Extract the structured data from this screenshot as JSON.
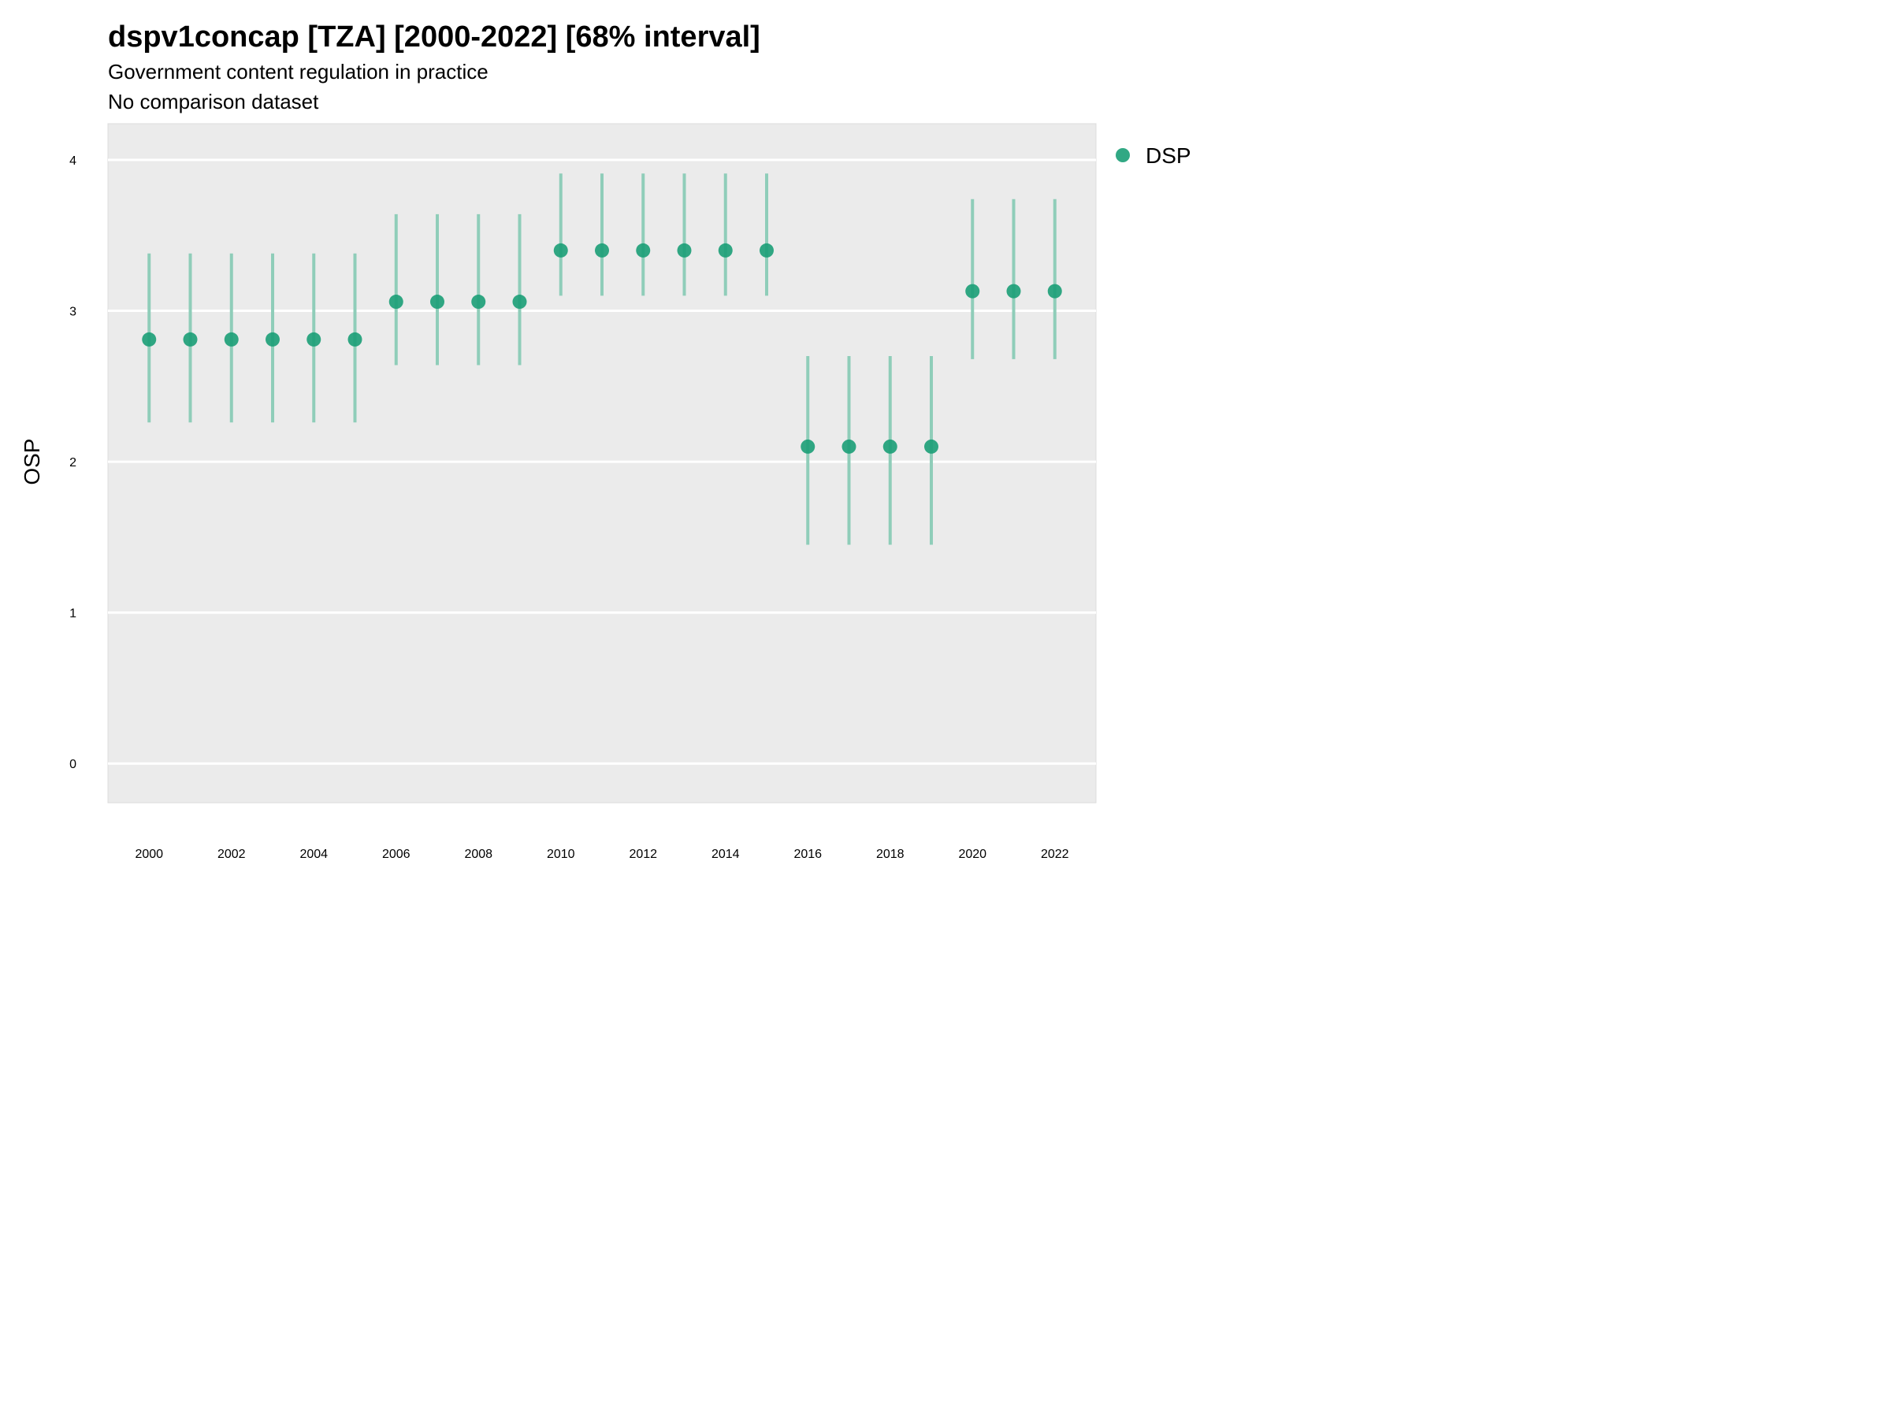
{
  "chart_data": {
    "type": "scatter",
    "title": "dspv1concap [TZA] [2000-2022] [68% interval]",
    "subtitle": "Government content regulation in practice",
    "subtitle2": "No comparison dataset",
    "xlabel": "",
    "ylabel": "OSP",
    "xlim": [
      1999,
      2023
    ],
    "ylim": [
      -0.26,
      4.24
    ],
    "grid": true,
    "legend_placement": "right",
    "x_ticks": [
      "2000",
      "2002",
      "2004",
      "2006",
      "2008",
      "2010",
      "2012",
      "2014",
      "2016",
      "2018",
      "2020",
      "2022"
    ],
    "y_ticks": [
      "0",
      "1",
      "2",
      "3",
      "4"
    ],
    "colors": {
      "point": "#1b9e77",
      "interval": "#8fcdb9",
      "panel": "#ebebeb",
      "grid": "#ffffff"
    },
    "series": [
      {
        "name": "DSP",
        "x": [
          2000,
          2001,
          2002,
          2003,
          2004,
          2005,
          2006,
          2007,
          2008,
          2009,
          2010,
          2011,
          2012,
          2013,
          2014,
          2015,
          2016,
          2017,
          2018,
          2019,
          2020,
          2021,
          2022
        ],
        "y": [
          2.81,
          2.81,
          2.81,
          2.81,
          2.81,
          2.81,
          3.06,
          3.06,
          3.06,
          3.06,
          3.4,
          3.4,
          3.4,
          3.4,
          3.4,
          3.4,
          2.1,
          2.1,
          2.1,
          2.1,
          3.13,
          3.13,
          3.13
        ],
        "lower": [
          2.26,
          2.26,
          2.26,
          2.26,
          2.26,
          2.26,
          2.64,
          2.64,
          2.64,
          2.64,
          3.1,
          3.1,
          3.1,
          3.1,
          3.1,
          3.1,
          1.45,
          1.45,
          1.45,
          1.45,
          2.68,
          2.68,
          2.68
        ],
        "upper": [
          3.38,
          3.38,
          3.38,
          3.38,
          3.38,
          3.38,
          3.64,
          3.64,
          3.64,
          3.64,
          3.91,
          3.91,
          3.91,
          3.91,
          3.91,
          3.91,
          2.7,
          2.7,
          2.7,
          2.7,
          3.74,
          3.74,
          3.74
        ]
      }
    ]
  }
}
